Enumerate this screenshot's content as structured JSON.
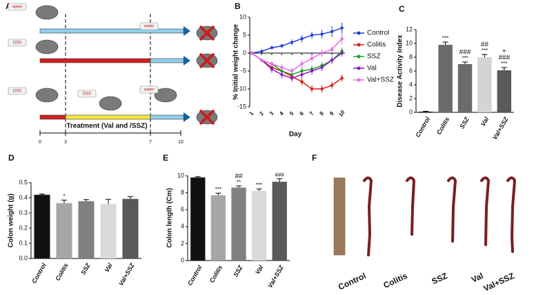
{
  "panel_a": {
    "label": "A",
    "bottles": [
      "water",
      "DSS",
      "water",
      "DSS",
      "DSS",
      "water"
    ],
    "treatment": "Treatment (Val and /SSZ)",
    "days": [
      "0",
      "3",
      "7",
      "10"
    ]
  },
  "chart_data": [
    {
      "type": "line",
      "label": "B",
      "y_label": "% Initial weight change",
      "x_label": "Day",
      "x": [
        1,
        2,
        3,
        4,
        5,
        6,
        7,
        8,
        9,
        10
      ],
      "xlim": [
        0.8,
        10.3
      ],
      "xticks": [
        1,
        2,
        3,
        4,
        5,
        6,
        7,
        8,
        9,
        10
      ],
      "ylim": [
        -15,
        10
      ],
      "yticks": [
        -15,
        -10,
        -5,
        0,
        5,
        10
      ],
      "series": [
        {
          "name": "Control",
          "color": "#1f3fd6",
          "values": [
            0,
            0.5,
            1.5,
            2,
            3,
            4,
            5,
            5.3,
            6,
            7
          ],
          "errors": [
            0.3,
            0.5,
            0.5,
            0.5,
            0.8,
            1,
            1,
            1.2,
            1.5,
            1.5
          ]
        },
        {
          "name": "Colitis",
          "color": "#e01818",
          "values": [
            0,
            -2,
            -4,
            -5,
            -6.5,
            -8,
            -10,
            -10,
            -9,
            -7
          ],
          "errors": [
            0.3,
            0.5,
            0.8,
            1,
            1,
            1,
            1,
            1,
            1,
            1
          ]
        },
        {
          "name": "SSZ",
          "color": "#16a31a",
          "values": [
            0,
            -2,
            -3,
            -5,
            -6,
            -5,
            -4.5,
            -3.5,
            -2,
            0.5
          ],
          "errors": [
            0.3,
            0.5,
            0.8,
            1,
            1,
            1,
            1,
            1,
            1,
            1
          ]
        },
        {
          "name": "Val",
          "color": "#8a19c2",
          "values": [
            0,
            -2,
            -4.5,
            -6,
            -7,
            -6,
            -5,
            -4,
            -2,
            0
          ],
          "errors": [
            0.3,
            0.5,
            1,
            1,
            1,
            1,
            1,
            1,
            1,
            1
          ]
        },
        {
          "name": "Val+SSZ",
          "color": "#e36be3",
          "values": [
            0,
            -2,
            -3,
            -4,
            -5,
            -3,
            -1.5,
            0,
            1,
            4
          ],
          "errors": [
            0.3,
            0.5,
            0.8,
            1,
            1,
            1,
            1,
            1,
            1,
            1.5
          ]
        }
      ]
    },
    {
      "type": "bar",
      "label": "C",
      "y_label": "Disease Activity Index",
      "categories": [
        "Control",
        "Colitis",
        "SSZ",
        "Val",
        "Val+SSZ"
      ],
      "values": [
        0.1,
        9.8,
        7,
        8,
        6.1
      ],
      "errors": [
        0.05,
        0.4,
        0.3,
        0.4,
        0.4
      ],
      "colors": [
        "#111111",
        "#6b6b6b",
        "#6b6b6b",
        "#d4d4d4",
        "#5a5a5a"
      ],
      "annotations": [
        [],
        [
          "***"
        ],
        [
          "***",
          "###"
        ],
        [
          "***",
          "##"
        ],
        [
          "***",
          "###",
          "+"
        ]
      ],
      "ylim": [
        0,
        12
      ],
      "yticks": [
        0,
        2,
        4,
        6,
        8,
        10,
        12
      ]
    },
    {
      "type": "bar",
      "label": "D",
      "y_label": "Colon weight (g)",
      "categories": [
        "Control",
        "Colitis",
        "SSZ",
        "Val",
        "Val+SSZ"
      ],
      "values": [
        0.42,
        0.365,
        0.378,
        0.36,
        0.393
      ],
      "errors": [
        0.005,
        0.02,
        0.01,
        0.03,
        0.015
      ],
      "colors": [
        "#111111",
        "#a6a6a6",
        "#808080",
        "#d9d9d9",
        "#595959"
      ],
      "annotations": [
        [],
        [
          "*"
        ],
        [],
        [],
        []
      ],
      "ylim": [
        0,
        0.5
      ],
      "yticks": [
        {
          "value": 0,
          "label": "0.0"
        },
        0.1,
        0.2,
        0.3,
        0.4,
        0.5
      ]
    },
    {
      "type": "bar",
      "label": "E",
      "y_label": "Colon length (Cm)",
      "categories": [
        "Control",
        "Colitis",
        "SSZ",
        "Val",
        "Val+SSZ"
      ],
      "values": [
        9.8,
        7.7,
        8.6,
        8.2,
        9.3
      ],
      "errors": [
        0.1,
        0.25,
        0.2,
        0.25,
        0.35
      ],
      "colors": [
        "#111111",
        "#a6a6a6",
        "#808080",
        "#d9d9d9",
        "#595959"
      ],
      "annotations": [
        [],
        [
          "***"
        ],
        [
          "**",
          "##"
        ],
        [
          "***"
        ],
        [
          "###"
        ]
      ],
      "ylim": [
        0,
        10
      ],
      "yticks": [
        0,
        2,
        4,
        6,
        8,
        10
      ]
    }
  ],
  "panel_f": {
    "label": "F",
    "groups": [
      "Control",
      "Colitis",
      "SSZ",
      "Val",
      "Val+SSZ"
    ]
  }
}
